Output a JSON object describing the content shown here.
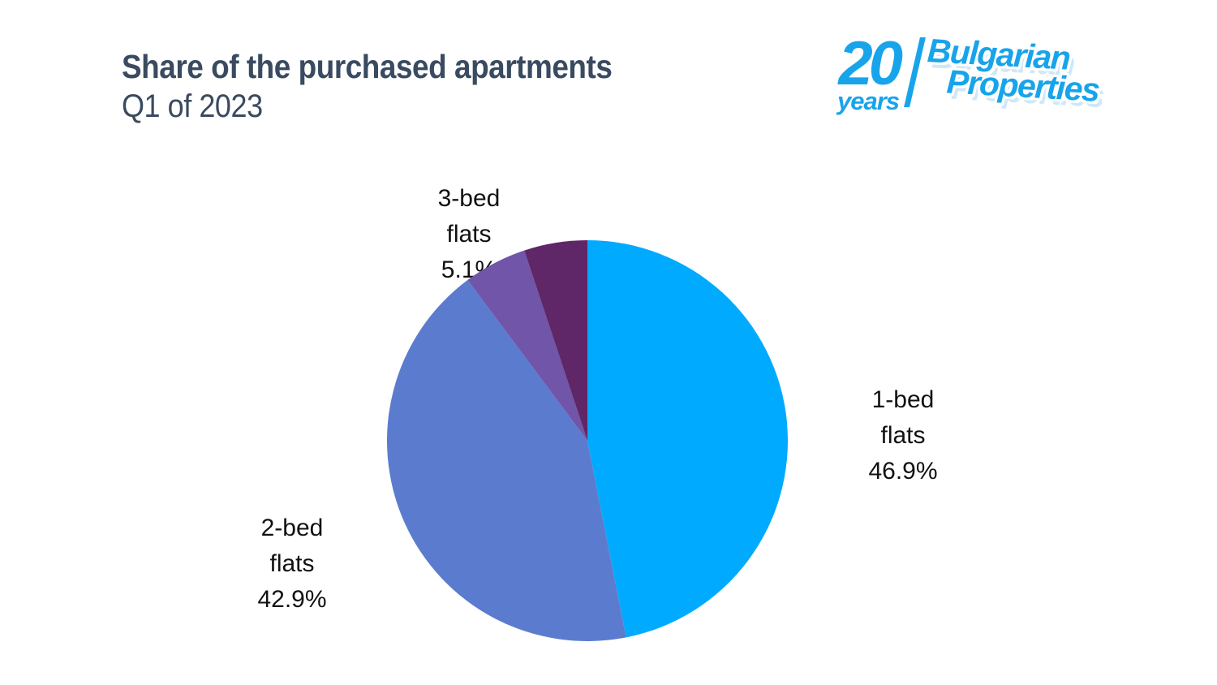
{
  "page": {
    "background": "#ffffff"
  },
  "header": {
    "title": "Share of the purchased apartments",
    "subtitle": "Q1 of 2023",
    "title_color": "#3a4a60"
  },
  "logo": {
    "years_number": "20",
    "years_word": "years",
    "brand_line1": "Bulgarian",
    "brand_line2": "Properties",
    "color": "#17a4ea"
  },
  "chart_data": {
    "type": "pie",
    "title": "Share of the purchased apartments",
    "subtitle": "Q1 of 2023",
    "start_angle_deg": 0,
    "direction": "clockwise",
    "legend": "none",
    "labels_position": "outside",
    "label_color": "#111111",
    "slices": [
      {
        "name": "1-bed flats",
        "value_pct": 46.9,
        "color": "#00aaff",
        "label_visible": true,
        "label_line1": "1-bed",
        "label_line2": "flats",
        "label_line3": "46.9%"
      },
      {
        "name": "2-bed flats",
        "value_pct": 42.9,
        "color": "#5b7cce",
        "label_visible": true,
        "label_line1": "2-bed",
        "label_line2": "flats",
        "label_line3": "42.9%"
      },
      {
        "name": "3-bed flats",
        "value_pct": 5.1,
        "color": "#7055a8",
        "label_visible": true,
        "label_line1": "3-bed",
        "label_line2": "flats",
        "label_line3": "5.1%"
      },
      {
        "name": "unlabeled",
        "value_pct": 5.1,
        "color": "#5f2767",
        "label_visible": false
      }
    ]
  }
}
